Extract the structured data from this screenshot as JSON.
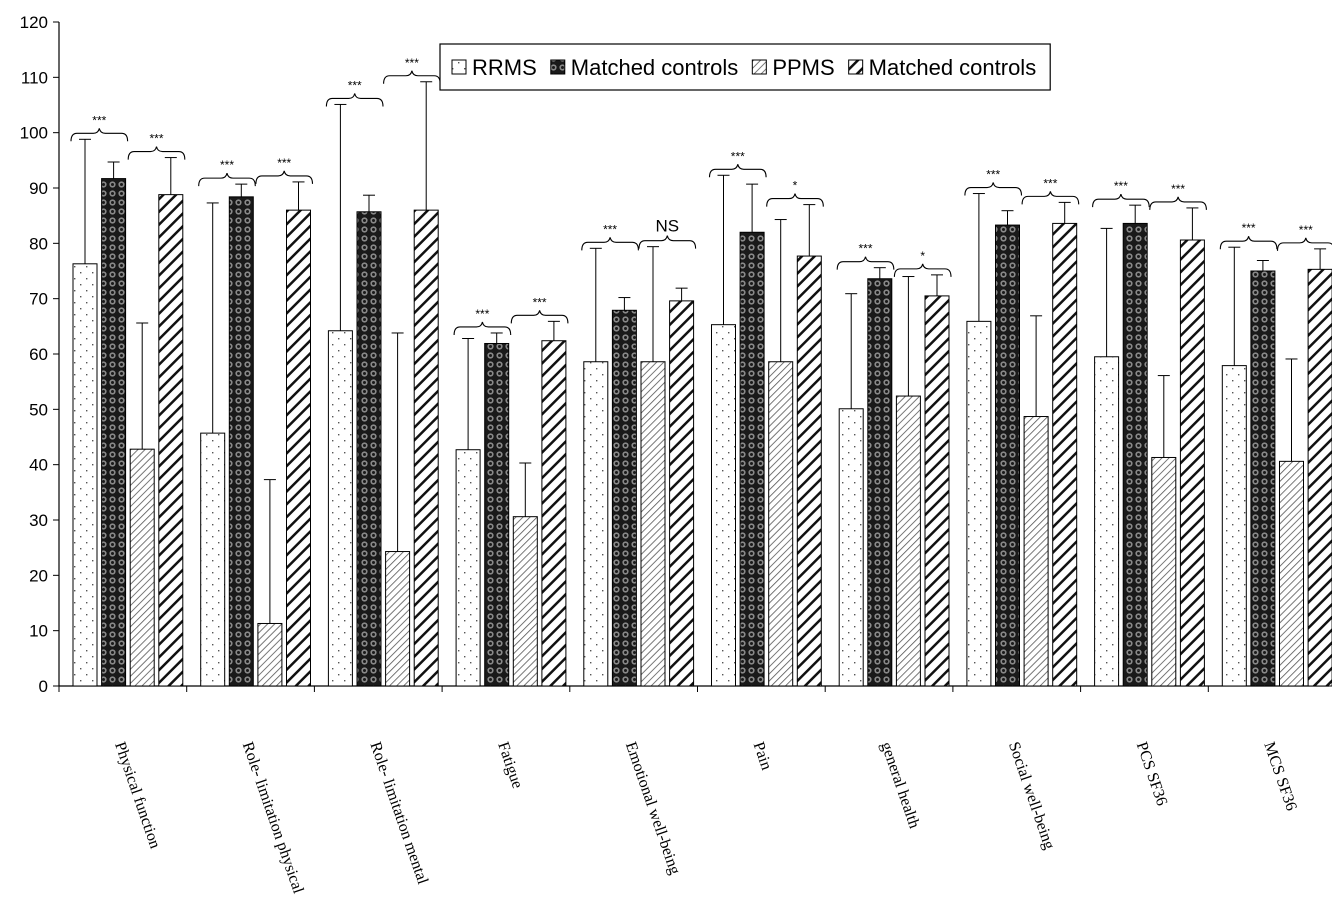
{
  "chart_data": {
    "type": "bar",
    "ylim": [
      0,
      120
    ],
    "yticks": [
      0,
      10,
      20,
      30,
      40,
      50,
      60,
      70,
      80,
      90,
      100,
      110,
      120
    ],
    "legend_position": "top-right",
    "categories": [
      "Physical function",
      "Role- limitation physical",
      "Role- limitation mental",
      "Fatigue",
      "Emotional well-being",
      "Pain",
      "general health",
      "Social well-being",
      "PCS SF36",
      "MCS SF36"
    ],
    "series": [
      {
        "name": "RRMS",
        "pattern": "dots",
        "values": [
          76.3,
          45.7,
          64.2,
          42.7,
          58.6,
          65.3,
          50.1,
          65.9,
          59.5,
          57.9
        ],
        "errors": [
          22.5,
          41.6,
          40.9,
          20.1,
          20.5,
          27.0,
          20.8,
          23.1,
          23.2,
          21.4
        ]
      },
      {
        "name": "Matched controls",
        "pattern": "circles",
        "values": [
          91.7,
          88.4,
          85.7,
          61.9,
          67.9,
          82.0,
          73.6,
          83.3,
          83.6,
          75.0
        ],
        "errors": [
          3.0,
          2.3,
          3.0,
          1.9,
          2.3,
          8.7,
          2.0,
          2.6,
          3.3,
          1.9
        ]
      },
      {
        "name": "PPMS",
        "pattern": "hatch-fine",
        "values": [
          42.8,
          11.3,
          24.3,
          30.6,
          58.6,
          58.6,
          52.4,
          48.7,
          41.3,
          40.6
        ],
        "errors": [
          22.8,
          26.0,
          39.5,
          9.7,
          20.8,
          25.7,
          21.6,
          18.2,
          14.8,
          18.5
        ]
      },
      {
        "name": "Matched controls",
        "pattern": "hatch-bold",
        "values": [
          88.8,
          86.0,
          86.0,
          62.4,
          69.6,
          77.7,
          70.5,
          83.6,
          80.6,
          75.3
        ],
        "errors": [
          6.7,
          5.1,
          23.2,
          3.5,
          2.3,
          9.3,
          3.8,
          3.8,
          5.8,
          3.7
        ]
      }
    ],
    "significance": [
      [
        "***",
        "***"
      ],
      [
        "***",
        "***"
      ],
      [
        "***",
        "***"
      ],
      [
        "***",
        "***"
      ],
      [
        "***",
        "NS"
      ],
      [
        "***",
        "*"
      ],
      [
        "***",
        "*"
      ],
      [
        "***",
        "***"
      ],
      [
        "***",
        "***"
      ],
      [
        "***",
        "***"
      ]
    ]
  }
}
